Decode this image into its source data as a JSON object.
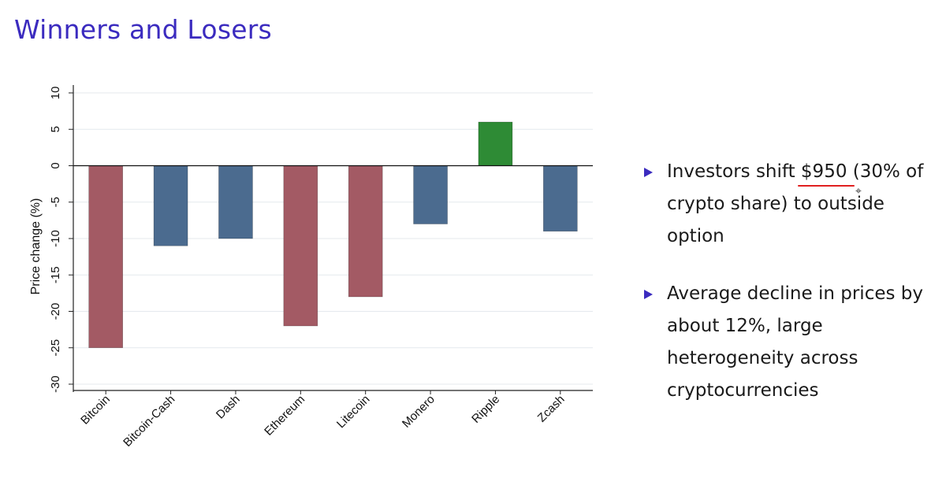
{
  "slide": {
    "title": "Winners and Losers"
  },
  "bullets": [
    {
      "before": "Investors shift ",
      "highlight": "$950",
      "after": " (30% of crypto share) to outside option"
    },
    {
      "text": "Average decline in prices by about 12%, large heterogeneity across cryptocurrencies"
    }
  ],
  "colors": {
    "title": "#3b2bbf",
    "bullet_marker": "#3b2bbf",
    "underline": "#e02020",
    "bar_red": "#a35a64",
    "bar_blue": "#4b6b8f",
    "bar_green": "#2e8b35"
  },
  "cursor": {
    "icon": "crosshair-cursor-icon"
  },
  "chart_data": {
    "type": "bar",
    "title": "",
    "xlabel": "",
    "ylabel": "Price change (%)",
    "categories": [
      "Bitcoin",
      "Bitcoin-Cash",
      "Dash",
      "Ethereum",
      "Litecoin",
      "Monero",
      "Ripple",
      "Zcash"
    ],
    "values": [
      -25,
      -11,
      -10,
      -22,
      -18,
      -8,
      6,
      -9
    ],
    "bar_colors": [
      "#a35a64",
      "#4b6b8f",
      "#4b6b8f",
      "#a35a64",
      "#a35a64",
      "#4b6b8f",
      "#2e8b35",
      "#4b6b8f"
    ],
    "ylim": [
      -30,
      10
    ],
    "yticks": [
      10,
      5,
      0,
      -5,
      -10,
      -15,
      -20,
      -25,
      -30
    ],
    "grid": true,
    "legend": "none"
  }
}
